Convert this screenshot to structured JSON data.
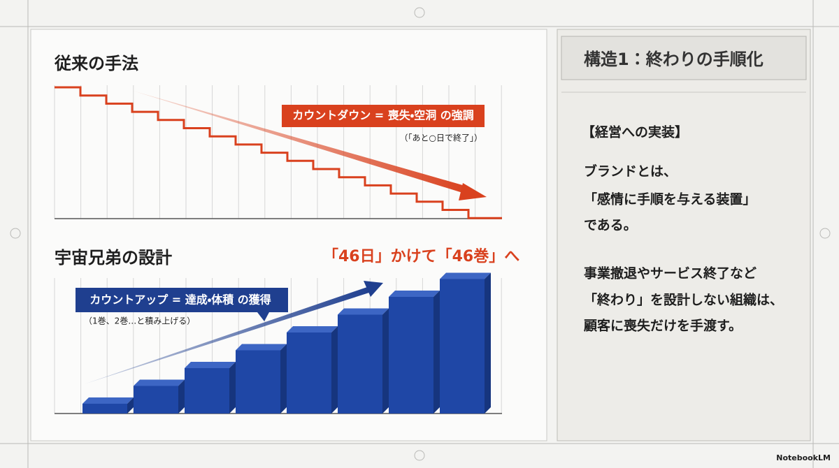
{
  "left": {
    "top_section": {
      "title": "従来の手法",
      "callout": "カウントダウン = 喪失・空洞 の強調",
      "note": "（「あと○日で終了」）"
    },
    "bottom_section": {
      "title": "宇宙兄弟の設計",
      "headline": "「46日」かけて「46巻」へ",
      "callout": "カウントアップ = 達成・体積 の獲得",
      "note": "（1巻、2巻…と積み上げる）"
    }
  },
  "right": {
    "title": "構造1：終わりの手順化",
    "heading": "【経営への実装】",
    "paragraphs": [
      [
        "ブランドとは、",
        "「感情に手順を与える装置」",
        "である。"
      ],
      [
        "事業撤退やサービス終了など",
        "「終わり」を設計しない組織は、",
        "顧客に喪失だけを手渡す。"
      ]
    ]
  },
  "footer": {
    "brand": "NotebookLM"
  }
}
